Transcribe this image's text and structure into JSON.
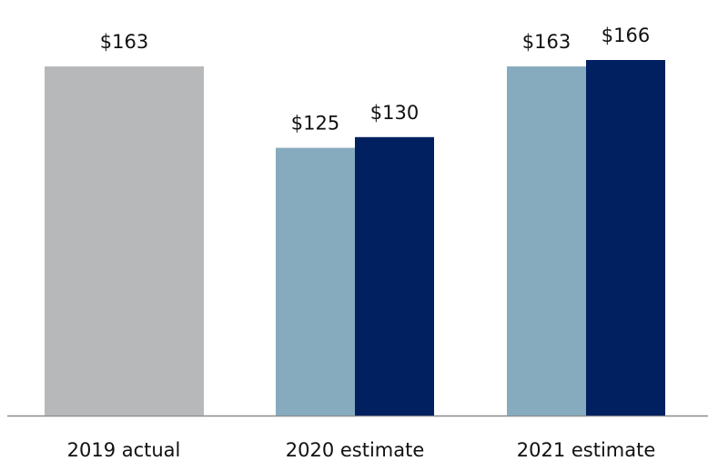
{
  "chart_data": {
    "type": "bar",
    "categories": [
      "2019 actual",
      "2020 estimate",
      "2021 estimate"
    ],
    "bars": [
      {
        "category": "2019 actual",
        "value": 163,
        "label": "$163",
        "color": "#b7b8ba"
      },
      {
        "category": "2020 estimate",
        "value": 125,
        "label": "$125",
        "color": "#87abbe"
      },
      {
        "category": "2020 estimate",
        "value": 130,
        "label": "$130",
        "color": "#002060"
      },
      {
        "category": "2021 estimate",
        "value": 163,
        "label": "$163",
        "color": "#87abbe"
      },
      {
        "category": "2021 estimate",
        "value": 166,
        "label": "$166",
        "color": "#002060"
      }
    ],
    "title": "",
    "xlabel": "",
    "ylabel": "",
    "ylim": [
      0,
      166
    ],
    "grid": false,
    "legend": "none",
    "axis_color": "#8a8a8a"
  }
}
